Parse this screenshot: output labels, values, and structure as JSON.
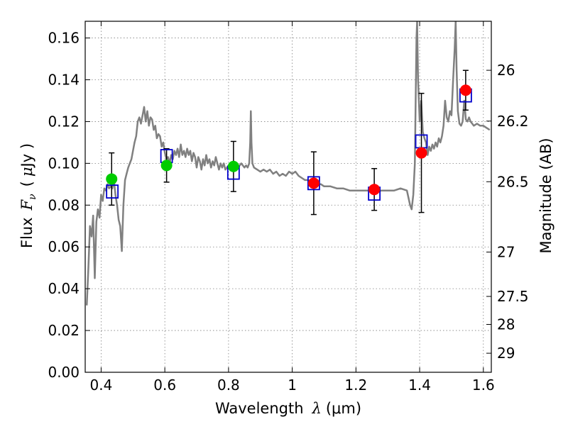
{
  "chart_data": {
    "type": "scatter",
    "xlabel_prefix": "Wavelength",
    "xlabel_symbol": "λ",
    "xlabel_unit": "(μm)",
    "ylabel_prefix": "Flux",
    "ylabel_symbol": "F",
    "ylabel_symbol_sub": "ν",
    "ylabel_unit_open": "(",
    "ylabel_unit_mu": "μ",
    "ylabel_unit_close": "Jy )",
    "y2label": "Magnitude (AB)",
    "xlim": [
      0.35,
      1.625
    ],
    "ylim": [
      0.0,
      0.168
    ],
    "grid": true,
    "x_ticks": [
      {
        "v": 0.4,
        "label": "0.4"
      },
      {
        "v": 0.6,
        "label": "0.6"
      },
      {
        "v": 0.8,
        "label": "0.8"
      },
      {
        "v": 1.0,
        "label": "1"
      },
      {
        "v": 1.2,
        "label": "1.2"
      },
      {
        "v": 1.4,
        "label": "1.4"
      },
      {
        "v": 1.6,
        "label": "1.6"
      }
    ],
    "y_ticks": [
      {
        "v": 0.0,
        "label": "0.00"
      },
      {
        "v": 0.02,
        "label": "0.02"
      },
      {
        "v": 0.04,
        "label": "0.04"
      },
      {
        "v": 0.06,
        "label": "0.06"
      },
      {
        "v": 0.08,
        "label": "0.08"
      },
      {
        "v": 0.1,
        "label": "0.10"
      },
      {
        "v": 0.12,
        "label": "0.12"
      },
      {
        "v": 0.14,
        "label": "0.14"
      },
      {
        "v": 0.16,
        "label": "0.16"
      }
    ],
    "y2_ticks": [
      {
        "mag": 26,
        "label": "26"
      },
      {
        "mag": 26.2,
        "label": "26.2"
      },
      {
        "mag": 26.5,
        "label": "26.5"
      },
      {
        "mag": 27,
        "label": "27"
      },
      {
        "mag": 27.5,
        "label": "27.5"
      },
      {
        "mag": 28,
        "label": "28"
      },
      {
        "mag": 29,
        "label": "29"
      }
    ],
    "colors": {
      "model": "#808080",
      "model_boxes": "#0000cc",
      "green": "#00cc00",
      "red": "#ff0000",
      "errorbar": "#000000",
      "grid": "#808080"
    },
    "model_spectrum": [
      [
        0.355,
        0.032
      ],
      [
        0.36,
        0.05
      ],
      [
        0.365,
        0.07
      ],
      [
        0.37,
        0.065
      ],
      [
        0.375,
        0.075
      ],
      [
        0.38,
        0.045
      ],
      [
        0.385,
        0.072
      ],
      [
        0.39,
        0.078
      ],
      [
        0.395,
        0.074
      ],
      [
        0.4,
        0.085
      ],
      [
        0.405,
        0.082
      ],
      [
        0.41,
        0.088
      ],
      [
        0.415,
        0.087
      ],
      [
        0.42,
        0.09
      ],
      [
        0.425,
        0.088
      ],
      [
        0.43,
        0.089
      ],
      [
        0.435,
        0.088
      ],
      [
        0.44,
        0.092
      ],
      [
        0.445,
        0.085
      ],
      [
        0.45,
        0.08
      ],
      [
        0.455,
        0.073
      ],
      [
        0.46,
        0.07
      ],
      [
        0.465,
        0.058
      ],
      [
        0.47,
        0.08
      ],
      [
        0.475,
        0.092
      ],
      [
        0.48,
        0.095
      ],
      [
        0.485,
        0.098
      ],
      [
        0.49,
        0.1
      ],
      [
        0.495,
        0.102
      ],
      [
        0.5,
        0.106
      ],
      [
        0.505,
        0.11
      ],
      [
        0.51,
        0.113
      ],
      [
        0.515,
        0.12
      ],
      [
        0.52,
        0.122
      ],
      [
        0.525,
        0.119
      ],
      [
        0.53,
        0.123
      ],
      [
        0.535,
        0.127
      ],
      [
        0.54,
        0.12
      ],
      [
        0.545,
        0.125
      ],
      [
        0.55,
        0.118
      ],
      [
        0.555,
        0.122
      ],
      [
        0.56,
        0.121
      ],
      [
        0.565,
        0.116
      ],
      [
        0.57,
        0.118
      ],
      [
        0.575,
        0.112
      ],
      [
        0.58,
        0.114
      ],
      [
        0.585,
        0.113
      ],
      [
        0.59,
        0.108
      ],
      [
        0.595,
        0.11
      ],
      [
        0.6,
        0.105
      ],
      [
        0.605,
        0.102
      ],
      [
        0.61,
        0.103
      ],
      [
        0.615,
        0.1
      ],
      [
        0.62,
        0.104
      ],
      [
        0.625,
        0.102
      ],
      [
        0.63,
        0.106
      ],
      [
        0.635,
        0.104
      ],
      [
        0.64,
        0.107
      ],
      [
        0.645,
        0.103
      ],
      [
        0.65,
        0.109
      ],
      [
        0.655,
        0.104
      ],
      [
        0.66,
        0.106
      ],
      [
        0.665,
        0.103
      ],
      [
        0.67,
        0.107
      ],
      [
        0.675,
        0.104
      ],
      [
        0.68,
        0.106
      ],
      [
        0.685,
        0.101
      ],
      [
        0.69,
        0.105
      ],
      [
        0.695,
        0.103
      ],
      [
        0.7,
        0.098
      ],
      [
        0.705,
        0.103
      ],
      [
        0.71,
        0.101
      ],
      [
        0.715,
        0.097
      ],
      [
        0.72,
        0.102
      ],
      [
        0.725,
        0.099
      ],
      [
        0.73,
        0.104
      ],
      [
        0.735,
        0.1
      ],
      [
        0.74,
        0.102
      ],
      [
        0.745,
        0.098
      ],
      [
        0.75,
        0.101
      ],
      [
        0.755,
        0.099
      ],
      [
        0.76,
        0.103
      ],
      [
        0.765,
        0.1
      ],
      [
        0.77,
        0.097
      ],
      [
        0.775,
        0.1
      ],
      [
        0.78,
        0.098
      ],
      [
        0.785,
        0.1
      ],
      [
        0.79,
        0.097
      ],
      [
        0.8,
        0.099
      ],
      [
        0.81,
        0.098
      ],
      [
        0.82,
        0.099
      ],
      [
        0.83,
        0.098
      ],
      [
        0.84,
        0.1
      ],
      [
        0.85,
        0.098
      ],
      [
        0.855,
        0.099
      ],
      [
        0.86,
        0.098
      ],
      [
        0.865,
        0.1
      ],
      [
        0.868,
        0.11
      ],
      [
        0.87,
        0.125
      ],
      [
        0.872,
        0.11
      ],
      [
        0.875,
        0.1
      ],
      [
        0.88,
        0.098
      ],
      [
        0.89,
        0.097
      ],
      [
        0.9,
        0.096
      ],
      [
        0.91,
        0.097
      ],
      [
        0.92,
        0.096
      ],
      [
        0.93,
        0.097
      ],
      [
        0.94,
        0.095
      ],
      [
        0.95,
        0.096
      ],
      [
        0.96,
        0.094
      ],
      [
        0.97,
        0.095
      ],
      [
        0.98,
        0.094
      ],
      [
        0.99,
        0.096
      ],
      [
        1.0,
        0.095
      ],
      [
        1.01,
        0.096
      ],
      [
        1.02,
        0.094
      ],
      [
        1.03,
        0.093
      ],
      [
        1.04,
        0.092
      ],
      [
        1.05,
        0.092
      ],
      [
        1.06,
        0.091
      ],
      [
        1.07,
        0.091
      ],
      [
        1.08,
        0.09
      ],
      [
        1.09,
        0.09
      ],
      [
        1.1,
        0.089
      ],
      [
        1.12,
        0.089
      ],
      [
        1.14,
        0.088
      ],
      [
        1.16,
        0.088
      ],
      [
        1.18,
        0.087
      ],
      [
        1.2,
        0.087
      ],
      [
        1.22,
        0.087
      ],
      [
        1.24,
        0.087
      ],
      [
        1.26,
        0.086
      ],
      [
        1.28,
        0.087
      ],
      [
        1.3,
        0.087
      ],
      [
        1.32,
        0.087
      ],
      [
        1.34,
        0.088
      ],
      [
        1.36,
        0.087
      ],
      [
        1.37,
        0.08
      ],
      [
        1.375,
        0.078
      ],
      [
        1.38,
        0.085
      ],
      [
        1.385,
        0.1
      ],
      [
        1.39,
        0.16
      ],
      [
        1.392,
        0.168
      ],
      [
        1.395,
        0.14
      ],
      [
        1.4,
        0.12
      ],
      [
        1.405,
        0.13
      ],
      [
        1.41,
        0.115
      ],
      [
        1.415,
        0.112
      ],
      [
        1.42,
        0.11
      ],
      [
        1.425,
        0.104
      ],
      [
        1.43,
        0.108
      ],
      [
        1.435,
        0.106
      ],
      [
        1.44,
        0.109
      ],
      [
        1.445,
        0.107
      ],
      [
        1.45,
        0.11
      ],
      [
        1.455,
        0.108
      ],
      [
        1.46,
        0.112
      ],
      [
        1.465,
        0.11
      ],
      [
        1.47,
        0.113
      ],
      [
        1.475,
        0.118
      ],
      [
        1.48,
        0.13
      ],
      [
        1.485,
        0.122
      ],
      [
        1.49,
        0.12
      ],
      [
        1.495,
        0.125
      ],
      [
        1.5,
        0.123
      ],
      [
        1.505,
        0.14
      ],
      [
        1.51,
        0.155
      ],
      [
        1.513,
        0.168
      ],
      [
        1.516,
        0.145
      ],
      [
        1.52,
        0.125
      ],
      [
        1.525,
        0.119
      ],
      [
        1.53,
        0.118
      ],
      [
        1.535,
        0.12
      ],
      [
        1.54,
        0.13
      ],
      [
        1.545,
        0.121
      ],
      [
        1.55,
        0.12
      ],
      [
        1.555,
        0.122
      ],
      [
        1.56,
        0.12
      ],
      [
        1.565,
        0.119
      ],
      [
        1.57,
        0.118
      ],
      [
        1.58,
        0.119
      ],
      [
        1.59,
        0.118
      ],
      [
        1.6,
        0.118
      ],
      [
        1.61,
        0.117
      ],
      [
        1.62,
        0.116
      ]
    ],
    "model_boxes": [
      {
        "x": 0.435,
        "y": 0.0865
      },
      {
        "x": 0.6055,
        "y": 0.1035
      },
      {
        "x": 0.8155,
        "y": 0.0955
      },
      {
        "x": 1.0675,
        "y": 0.0905
      },
      {
        "x": 1.2575,
        "y": 0.0855
      },
      {
        "x": 1.4055,
        "y": 0.1105
      },
      {
        "x": 1.5445,
        "y": 0.1325
      }
    ],
    "observations": [
      {
        "x": 0.433,
        "y": 0.0925,
        "err": 0.0125,
        "color": "green"
      },
      {
        "x": 0.6055,
        "y": 0.099,
        "err": 0.008,
        "color": "green"
      },
      {
        "x": 0.8155,
        "y": 0.0985,
        "err": 0.012,
        "color": "green"
      },
      {
        "x": 1.0675,
        "y": 0.0905,
        "err": 0.015,
        "color": "red"
      },
      {
        "x": 1.2575,
        "y": 0.0875,
        "err": 0.01,
        "color": "red"
      },
      {
        "x": 1.4055,
        "y": 0.105,
        "err": 0.0285,
        "color": "red"
      },
      {
        "x": 1.5445,
        "y": 0.135,
        "err": 0.0095,
        "color": "red"
      }
    ]
  }
}
